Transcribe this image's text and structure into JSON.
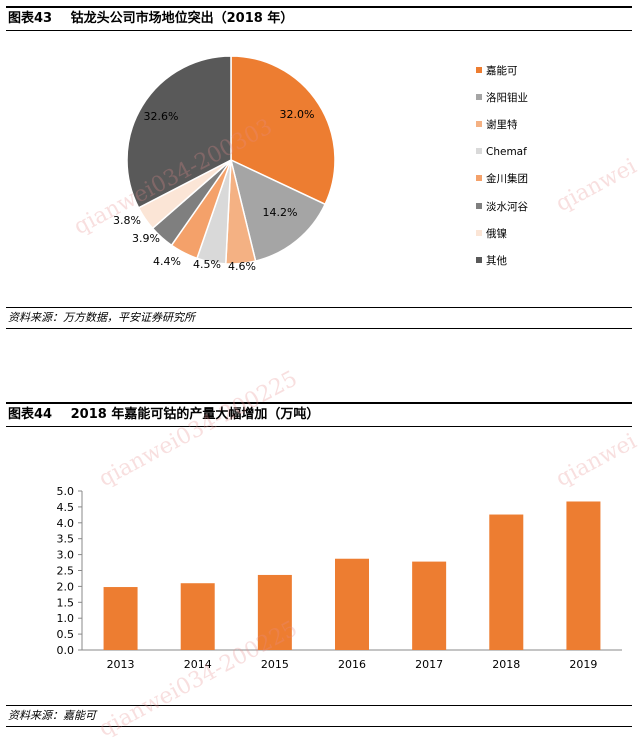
{
  "fig43": {
    "number": "图表43",
    "title": "钴龙头公司市场地位突出（2018 年）",
    "source": "资料来源：万方数据，平安证券研究所"
  },
  "fig44": {
    "number": "图表44",
    "title": "2018 年嘉能可钴的产量大幅增加（万吨）",
    "source": "资料来源：嘉能可"
  },
  "watermark": {
    "text1": "qianwei034-200303",
    "text2": "qianwei034-200225",
    "text3": "qianwei"
  },
  "chart_data": [
    {
      "type": "pie",
      "labels": [
        "嘉能可",
        "洛阳钼业",
        "谢里特",
        "Chemaf",
        "金川集团",
        "淡水河谷",
        "俄镍",
        "其他"
      ],
      "values": [
        32.0,
        14.2,
        4.6,
        4.5,
        4.4,
        3.9,
        3.8,
        32.6
      ],
      "value_labels": [
        "32.0%",
        "14.2%",
        "4.6%",
        "4.5%",
        "4.4%",
        "3.9%",
        "3.8%",
        "32.6%"
      ],
      "colors": [
        "#ED7D31",
        "#A5A5A5",
        "#F4B183",
        "#D9D9D9",
        "#F4A16A",
        "#7F7F7F",
        "#FBE5D6",
        "#595959"
      ],
      "legend_position": "right"
    },
    {
      "type": "bar",
      "categories": [
        "2013",
        "2014",
        "2015",
        "2016",
        "2017",
        "2018",
        "2019"
      ],
      "values": [
        1.98,
        2.1,
        2.36,
        2.87,
        2.78,
        4.26,
        4.67
      ],
      "ylim": [
        0,
        5.0
      ],
      "yticks": [
        "0.0",
        "0.5",
        "1.0",
        "1.5",
        "2.0",
        "2.5",
        "3.0",
        "3.5",
        "4.0",
        "4.5",
        "5.0"
      ],
      "color": "#ED7D31",
      "grid": false
    }
  ]
}
